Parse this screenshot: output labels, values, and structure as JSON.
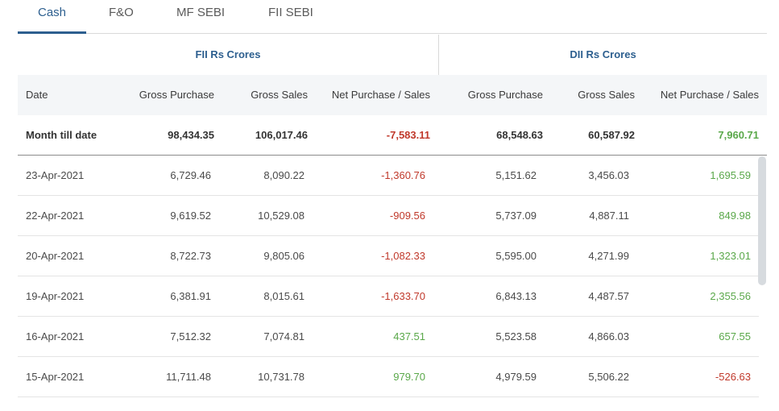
{
  "tabs": [
    {
      "label": "Cash"
    },
    {
      "label": "F&O"
    },
    {
      "label": "MF SEBI"
    },
    {
      "label": "FII SEBI"
    }
  ],
  "groups": {
    "fii": "FII Rs Crores",
    "dii": "DII Rs Crores"
  },
  "columns": [
    "Date",
    "Gross Purchase",
    "Gross Sales",
    "Net Purchase / Sales",
    "Gross Purchase",
    "Gross Sales",
    "Net Purchase / Sales"
  ],
  "summary": {
    "label": "Month till date",
    "fii_gross_purchase": "98,434.35",
    "fii_gross_sales": "106,017.46",
    "fii_net": "-7,583.11",
    "dii_gross_purchase": "68,548.63",
    "dii_gross_sales": "60,587.92",
    "dii_net": "7,960.71"
  },
  "rows": [
    {
      "date": "23-Apr-2021",
      "fii_gp": "6,729.46",
      "fii_gs": "8,090.22",
      "fii_net": "-1,360.76",
      "dii_gp": "5,151.62",
      "dii_gs": "3,456.03",
      "dii_net": "1,695.59"
    },
    {
      "date": "22-Apr-2021",
      "fii_gp": "9,619.52",
      "fii_gs": "10,529.08",
      "fii_net": "-909.56",
      "dii_gp": "5,737.09",
      "dii_gs": "4,887.11",
      "dii_net": "849.98"
    },
    {
      "date": "20-Apr-2021",
      "fii_gp": "8,722.73",
      "fii_gs": "9,805.06",
      "fii_net": "-1,082.33",
      "dii_gp": "5,595.00",
      "dii_gs": "4,271.99",
      "dii_net": "1,323.01"
    },
    {
      "date": "19-Apr-2021",
      "fii_gp": "6,381.91",
      "fii_gs": "8,015.61",
      "fii_net": "-1,633.70",
      "dii_gp": "6,843.13",
      "dii_gs": "4,487.57",
      "dii_net": "2,355.56"
    },
    {
      "date": "16-Apr-2021",
      "fii_gp": "7,512.32",
      "fii_gs": "7,074.81",
      "fii_net": "437.51",
      "dii_gp": "5,523.58",
      "dii_gs": "4,866.03",
      "dii_net": "657.55"
    },
    {
      "date": "15-Apr-2021",
      "fii_gp": "11,711.48",
      "fii_gs": "10,731.78",
      "fii_net": "979.70",
      "dii_gp": "4,979.59",
      "dii_gs": "5,506.22",
      "dii_net": "-526.63"
    }
  ],
  "colors": {
    "accent": "#2d5f8f",
    "negative": "#c0392b",
    "positive": "#5aa84a"
  }
}
